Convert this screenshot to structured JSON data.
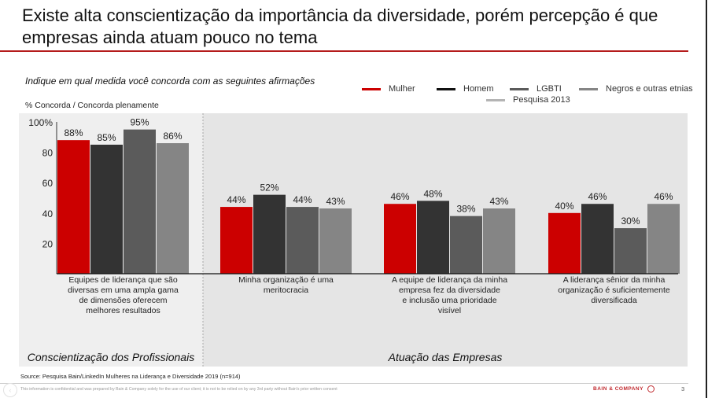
{
  "title": "Existe alta conscientização da importância da diversidade, porém percepção é que empresas ainda atuam pouco no tema",
  "question": "Indique em qual medida você concorda com as seguintes afirmações",
  "source": "Source: Pesquisa Bain/LinkedIn Mulheres na Liderança e Diversidade 2019 (n=914)",
  "disclaimer": "This information is confidential and was prepared by Bain & Company solely for the use of our client; it is not to be relied on by any 3rd party without Bain's prior written consent",
  "brand": "BAIN & COMPANY",
  "page_number": "3",
  "nav_icon": "back-arrow-icon",
  "colors": {
    "accent": "#b51c1c",
    "mulher": "#cc0000",
    "homem": "#333333",
    "lgbti": "#5b5b5b",
    "negros": "#858585",
    "pesquisa2013": "#b4b4b4"
  },
  "chart_data": {
    "type": "bar",
    "title": "Indique em qual medida você concorda com as seguintes afirmações",
    "ylabel": "% Concorda / Concorda plenamente",
    "ylim": [
      0,
      100
    ],
    "yticks": [
      {
        "value": 100,
        "label": "100%"
      },
      {
        "value": 80,
        "label": "80"
      },
      {
        "value": 60,
        "label": "60"
      },
      {
        "value": 40,
        "label": "40"
      },
      {
        "value": 20,
        "label": "20"
      }
    ],
    "grid": false,
    "legend_position": "top-right",
    "categories": [
      "Equipes de liderança que são diversas em uma ampla gama de dimensões oferecem melhores resultados",
      "Minha organização é uma meritocracia",
      "A equipe de liderança da minha empresa fez da diversidade e inclusão uma prioridade visível",
      "A liderança sênior da minha organização é suficientemente diversificada"
    ],
    "category_lines": [
      [
        "Equipes de liderança que são",
        "diversas em uma ampla gama",
        "de dimensões oferecem",
        "melhores resultados"
      ],
      [
        "Minha organização é uma",
        "meritocracia"
      ],
      [
        "A equipe de liderança da minha",
        "empresa fez da diversidade",
        "e inclusão uma prioridade",
        "visível"
      ],
      [
        "A liderança sênior da minha",
        "organização é suficientemente",
        "diversificada"
      ]
    ],
    "series": [
      {
        "name": "Mulher",
        "color": "#cc0000",
        "values": [
          88,
          44,
          46,
          40
        ],
        "labels": [
          "88%",
          "44%",
          "46%",
          "40%"
        ]
      },
      {
        "name": "Homem",
        "color": "#333333",
        "values": [
          85,
          52,
          48,
          46
        ],
        "labels": [
          "85%",
          "52%",
          "48%",
          "46%"
        ]
      },
      {
        "name": "LGBTI",
        "color": "#5b5b5b",
        "values": [
          95,
          44,
          38,
          30
        ],
        "labels": [
          "95%",
          "44%",
          "38%",
          "30%"
        ]
      },
      {
        "name": "Negros e outras etnias",
        "color": "#858585",
        "values": [
          86,
          43,
          43,
          46
        ],
        "labels": [
          "86%",
          "43%",
          "43%",
          "46%"
        ]
      }
    ],
    "legend_extra": {
      "name": "Pesquisa 2013",
      "color": "#b4b4b4"
    },
    "sections": [
      {
        "label": "Conscientização dos Profissionais",
        "categories": [
          0
        ]
      },
      {
        "label": "Atuação das Empresas",
        "categories": [
          1,
          2,
          3
        ]
      }
    ]
  }
}
